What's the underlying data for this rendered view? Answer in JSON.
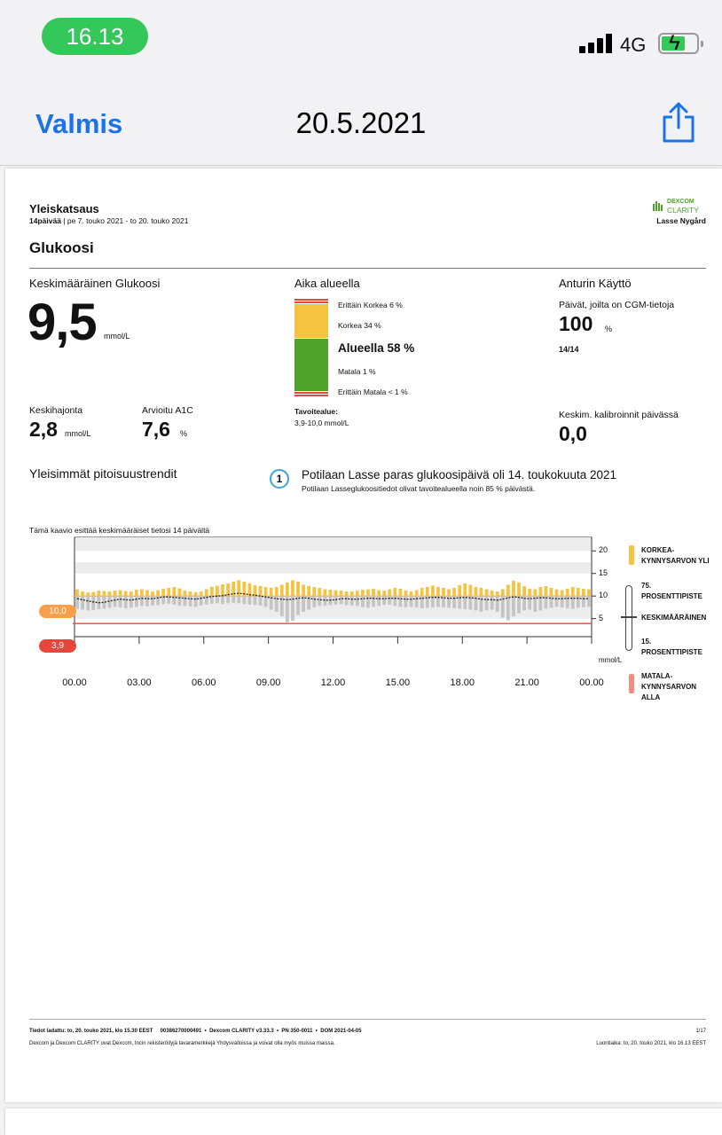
{
  "status": {
    "time": "16.13",
    "network": "4G"
  },
  "nav": {
    "done_label": "Valmis",
    "title": "20.5.2021"
  },
  "report": {
    "title": "Yleiskatsaus",
    "period_days": "14päivää",
    "period_range": "pe 7. touko 2021 - to 20. touko 2021",
    "brand_line1": "DEXCOM",
    "brand_line2": "CLARITY",
    "patient": "Lasse Nygård",
    "section": "Glukoosi",
    "avg": {
      "label": "Keskimääräinen Glukoosi",
      "value": "9,5",
      "unit": "mmol/L"
    },
    "sd": {
      "label": "Keskihajonta",
      "value": "2,8",
      "unit": "mmol/L"
    },
    "a1c": {
      "label": "Arvioitu A1C",
      "value": "7,6",
      "unit": "%"
    },
    "tir": {
      "label": "Aika alueella",
      "very_high": "Erittäin Korkea 6 %",
      "high": "Korkea 34 %",
      "in_range": "Alueella 58 %",
      "low": "Matala 1 %",
      "very_low": "Erittäin Matala < 1 %",
      "target_label": "Tavoitealue:",
      "target_value": "3,9-10,0 mmol/L",
      "percent": {
        "very_high": 6,
        "high": 34,
        "in_range": 58,
        "low": 1,
        "very_low": 1
      }
    },
    "sensor": {
      "label": "Anturin Käyttö",
      "days_label": "Päivät, joilta on CGM-tietoja",
      "days_value": "100",
      "days_unit": "%",
      "days_fraction": "14/14",
      "cal_label": "Keskim. kalibroinnit päivässä",
      "cal_value": "0,0"
    },
    "trends_label": "Yleisimmät pitoisuustrendit",
    "best_day": {
      "number": "1",
      "title": "Potilaan Lasse paras glukoosipäivä oli 14. toukokuuta 2021",
      "subtitle": "Potilaan Lasseglukoositiedot olivat tavoitealueella noin 85 % päivästä."
    },
    "chart_caption": "Tämä kaavio esittää keskimääräiset tietosi 14 päivältä",
    "footer_line1": "Tiedot ladattu: to, 20. touko 2021, klo 15.30 EEST     00386270000491  •  Dexcom CLARITY v3.33.3  •  PN 350-0011  •  DOM 2021-04-05",
    "footer_line2": "Dexcom ja Dexcom CLARITY ovat Dexcom, Incin rekisteröityjä tavaramerkkejä Yhdysvalloissa ja voivat olla myös muissa maissa.",
    "page_no": "1/17",
    "printed": "Luontiaika: to, 20. touko 2021, klo 16.13 EEST"
  },
  "colors": {
    "high": "#f5c242",
    "in_range": "#4fa32a",
    "low": "#e8463a",
    "very_high": "#e8463a",
    "avg_badge": "#f7a04a",
    "ios_blue": "#1a73e8"
  },
  "chart_data": {
    "type": "bar",
    "title": "Tämä kaavio esittää keskimääräiset tietosi 14 päivältä",
    "xlabel": "",
    "ylabel": "mmol/L",
    "x_ticks": [
      "00.00",
      "03.00",
      "06.00",
      "09.00",
      "12.00",
      "15.00",
      "18.00",
      "21.00",
      "00.00"
    ],
    "y_ticks": [
      5,
      10,
      15,
      20
    ],
    "ylim": [
      1,
      23
    ],
    "thresholds": {
      "high": "10,0",
      "low": "3,9",
      "high_value": 10.0,
      "low_value": 3.9
    },
    "hours": [
      0,
      0.25,
      0.5,
      0.75,
      1,
      1.25,
      1.5,
      1.75,
      2,
      2.25,
      2.5,
      2.75,
      3,
      3.25,
      3.5,
      3.75,
      4,
      4.25,
      4.5,
      4.75,
      5,
      5.25,
      5.5,
      5.75,
      6,
      6.25,
      6.5,
      6.75,
      7,
      7.25,
      7.5,
      7.75,
      8,
      8.25,
      8.5,
      8.75,
      9,
      9.25,
      9.5,
      9.75,
      10,
      10.25,
      10.5,
      10.75,
      11,
      11.25,
      11.5,
      11.75,
      12,
      12.25,
      12.5,
      12.75,
      13,
      13.25,
      13.5,
      13.75,
      14,
      14.25,
      14.5,
      14.75,
      15,
      15.25,
      15.5,
      15.75,
      16,
      16.25,
      16.5,
      16.75,
      17,
      17.25,
      17.5,
      17.75,
      18,
      18.25,
      18.5,
      18.75,
      19,
      19.25,
      19.5,
      19.75,
      20,
      20.25,
      20.5,
      20.75,
      21,
      21.25,
      21.5,
      21.75,
      22,
      22.25,
      22.5,
      22.75,
      23,
      23.25,
      23.5,
      23.75
    ],
    "p75": [
      11.5,
      11,
      10.8,
      10.9,
      11.2,
      11.1,
      11,
      11.2,
      11.3,
      11.1,
      11,
      11.4,
      11.5,
      11.3,
      11,
      11.3,
      11.6,
      11.8,
      12,
      11.7,
      11.2,
      11,
      10.8,
      11,
      11.5,
      12,
      12.3,
      12.6,
      12.8,
      13.2,
      13.5,
      13.2,
      12.8,
      12.4,
      12.2,
      12,
      11.8,
      12,
      12.5,
      13,
      13.5,
      13.2,
      12.5,
      12.2,
      12,
      11.8,
      11.5,
      11.4,
      11.3,
      11.2,
      11,
      11,
      11.2,
      11.4,
      11.5,
      11.6,
      11.3,
      11.2,
      11.5,
      11.8,
      11.6,
      11.2,
      11,
      11.3,
      11.8,
      12,
      12.3,
      12,
      11.8,
      11.5,
      11.8,
      12.4,
      12.8,
      12.5,
      12,
      11.8,
      11.5,
      11.2,
      11,
      11.5,
      12.5,
      13.4,
      13,
      12.2,
      11.6,
      11.5,
      12,
      12.2,
      11.8,
      11.5,
      11.3,
      11.6,
      12,
      11.8,
      11.6,
      11.5
    ],
    "p25": [
      7.2,
      7,
      6.8,
      6.9,
      7.1,
      7.2,
      7.4,
      7.6,
      7.5,
      7.3,
      7.4,
      7.6,
      7.8,
      7.7,
      7.9,
      8,
      8.2,
      8.3,
      8.1,
      7.9,
      7.8,
      7.7,
      7.6,
      7.9,
      8.1,
      8.3,
      8.4,
      8.2,
      8.4,
      8.5,
      8.4,
      8.2,
      8.1,
      8,
      7.9,
      7.6,
      7,
      6.5,
      5.5,
      4.2,
      4.5,
      5.8,
      6.5,
      7,
      7.5,
      7.8,
      7.9,
      8,
      8.1,
      8.2,
      8,
      7.9,
      7.8,
      7.5,
      7.4,
      7.6,
      7.8,
      8,
      8.1,
      7.8,
      7.6,
      7.5,
      7.6,
      7.5,
      7.3,
      7.4,
      7.5,
      7.6,
      7.5,
      7.4,
      7.3,
      7.2,
      7.1,
      7,
      6.8,
      6.5,
      6.8,
      7,
      6.5,
      5.2,
      4.6,
      5.5,
      6.2,
      6.8,
      7,
      6.5,
      6.8,
      7.2,
      7.4,
      7.6,
      7.5,
      7.3,
      7.2,
      7.4,
      7.5,
      7.6
    ],
    "median": [
      9.4,
      9.2,
      8.9,
      8.7,
      8.5,
      8.6,
      8.9,
      9.1,
      9.3,
      9.2,
      9.1,
      9.3,
      9.5,
      9.4,
      9.4,
      9.6,
      9.8,
      9.8,
      9.7,
      9.6,
      9.5,
      9.4,
      9.3,
      9.5,
      9.7,
      9.9,
      10,
      10.1,
      10.3,
      10.5,
      10.6,
      10.5,
      10.3,
      10.2,
      10,
      9.8,
      9.6,
      9.4,
      9.3,
      9.2,
      9.3,
      9.5,
      9.6,
      9.5,
      9.3,
      9.2,
      9.1,
      9.1,
      9.2,
      9.4,
      9.4,
      9.3,
      9.3,
      9.4,
      9.5,
      9.5,
      9.4,
      9.4,
      9.5,
      9.5,
      9.4,
      9.3,
      9.3,
      9.4,
      9.5,
      9.6,
      9.7,
      9.7,
      9.6,
      9.5,
      9.5,
      9.6,
      9.7,
      9.6,
      9.5,
      9.3,
      9.2,
      9.2,
      9.1,
      9.3,
      9.6,
      9.8,
      9.7,
      9.5,
      9.4,
      9.5,
      9.6,
      9.6,
      9.5,
      9.4,
      9.4,
      9.5,
      9.5,
      9.5,
      9.4,
      9.4
    ],
    "legend": {
      "high": "KORKEA-\nKYNNYSARVON YLI",
      "p75": "75.\nPROSENTTIPISTE",
      "mean": "KESKIMÄÄRÄINEN",
      "p15": "15.\nPROSENTTIPISTE",
      "low": "MATALA-\nKYNNYSARVON\nALLA"
    }
  }
}
